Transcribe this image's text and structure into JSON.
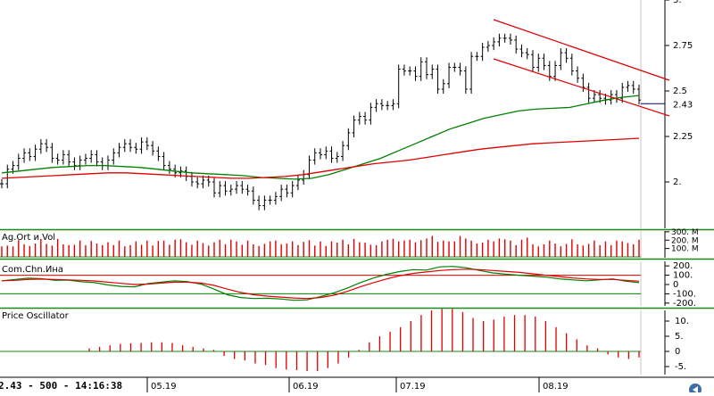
{
  "status_bar": {
    "text": "2.43 - 500 - 14:16:38"
  },
  "colors": {
    "bar": "#000000",
    "ma_short": "#008000",
    "ma_long": "#e00000",
    "channel": "#e00000",
    "histogram": "#e00000",
    "panel_border": "#1a8a1a",
    "grid": "#c8c8c8"
  },
  "chart_data": [
    {
      "type": "line",
      "panel": "price",
      "title": "",
      "x_tick_labels": [
        "05.19",
        "06.19",
        "07.19",
        "08.19"
      ],
      "y_tick_labels": [
        "3.",
        "2.75",
        "2.5",
        "2.25",
        "2."
      ],
      "ylim": [
        1.75,
        3.0
      ],
      "last_price_label": "2.43",
      "grid": true,
      "series": [
        {
          "style": "ohlc",
          "values": [
            1.99,
            2.07,
            2.09,
            2.13,
            2.16,
            2.14,
            2.18,
            2.21,
            2.19,
            2.13,
            2.12,
            2.15,
            2.11,
            2.09,
            2.12,
            2.13,
            2.15,
            2.11,
            2.09,
            2.12,
            2.16,
            2.19,
            2.21,
            2.19,
            2.18,
            2.22,
            2.2,
            2.17,
            2.14,
            2.09,
            2.07,
            2.05,
            2.06,
            2.03,
            2.0,
            1.99,
            2.01,
            2.0,
            1.94,
            1.98,
            1.95,
            1.96,
            1.98,
            1.96,
            1.95,
            1.9,
            1.87,
            1.9,
            1.9,
            1.92,
            1.96,
            1.94,
            1.98,
            2.01,
            2.04,
            2.12,
            2.16,
            2.15,
            2.17,
            2.13,
            2.14,
            2.2,
            2.27,
            2.34,
            2.36,
            2.34,
            2.41,
            2.43,
            2.42,
            2.42,
            2.43,
            2.62,
            2.61,
            2.61,
            2.58,
            2.66,
            2.59,
            2.62,
            2.51,
            2.54,
            2.63,
            2.63,
            2.61,
            2.51,
            2.69,
            2.69,
            2.74,
            2.75,
            2.77,
            2.79,
            2.79,
            2.78,
            2.73,
            2.71,
            2.7,
            2.63,
            2.68,
            2.64,
            2.58,
            2.64,
            2.71,
            2.68,
            2.61,
            2.57,
            2.52,
            2.46,
            2.48,
            2.46,
            2.45,
            2.48,
            2.46,
            2.52,
            2.53,
            2.51,
            2.45
          ]
        },
        {
          "style": "moving-average",
          "values": [
            2.05,
            2.06,
            2.07,
            2.08,
            2.085,
            2.09,
            2.09,
            2.085,
            2.08,
            2.07,
            2.06,
            2.05,
            2.045,
            2.04,
            2.035,
            2.025,
            2.02,
            2.015,
            2.02,
            2.04,
            2.07,
            2.1,
            2.13,
            2.17,
            2.21,
            2.25,
            2.29,
            2.32,
            2.35,
            2.37,
            2.39,
            2.4,
            2.405,
            2.41,
            2.43,
            2.45,
            2.465,
            2.475
          ]
        },
        {
          "style": "moving-average",
          "values": [
            2.02,
            2.025,
            2.03,
            2.035,
            2.04,
            2.045,
            2.05,
            2.05,
            2.045,
            2.04,
            2.035,
            2.03,
            2.025,
            2.02,
            2.02,
            2.025,
            2.03,
            2.04,
            2.055,
            2.07,
            2.085,
            2.1,
            2.11,
            2.12,
            2.135,
            2.15,
            2.165,
            2.18,
            2.19,
            2.2,
            2.21,
            2.215,
            2.22,
            2.225,
            2.23,
            2.235,
            2.24
          ]
        }
      ]
    },
    {
      "type": "bar",
      "panel": "volume",
      "title": "Ag.Ort и Vol",
      "y_tick_labels": [
        "300. M",
        "200. M",
        "100. M"
      ],
      "ylim": [
        0,
        320
      ],
      "values": [
        125,
        135,
        125,
        200,
        150,
        130,
        160,
        215,
        155,
        135,
        215,
        150,
        140,
        145,
        195,
        140,
        190,
        160,
        140,
        175,
        140,
        195,
        125,
        140,
        185,
        145,
        195,
        135,
        190,
        195,
        145,
        205,
        210,
        175,
        145,
        195,
        165,
        135,
        175,
        205,
        150,
        205,
        185,
        145,
        195,
        150,
        130,
        155,
        185,
        195,
        150,
        160,
        185,
        140,
        180,
        200,
        135,
        185,
        130,
        185,
        170,
        205,
        150,
        215,
        175,
        170,
        145,
        140,
        185,
        205,
        215,
        185,
        195,
        205,
        175,
        200,
        220,
        250,
        180,
        195,
        185,
        185,
        250,
        220,
        195,
        160,
        170,
        205,
        185,
        220,
        210,
        195,
        140,
        205,
        230,
        150,
        125,
        150,
        195,
        160,
        125,
        155,
        210,
        150,
        135,
        155,
        195,
        140,
        185,
        140,
        195,
        185,
        165,
        150,
        205
      ]
    },
    {
      "type": "line",
      "panel": "cci",
      "title": "Com.Chn.Ина",
      "y_tick_labels": [
        "200.",
        "100.",
        "0",
        "-100.",
        "-200."
      ],
      "ylim": [
        -230,
        230
      ],
      "reference_lines": [
        100,
        -100
      ],
      "series": [
        {
          "style": "indicator",
          "values": [
            40,
            55,
            68,
            62,
            45,
            48,
            30,
            20,
            -5,
            -20,
            -25,
            10,
            25,
            40,
            30,
            5,
            -50,
            -110,
            -140,
            -150,
            -148,
            -155,
            -170,
            -165,
            -130,
            -90,
            -40,
            20,
            70,
            110,
            140,
            160,
            155,
            190,
            195,
            180,
            150,
            125,
            110,
            100,
            90,
            80,
            60,
            50,
            40,
            50,
            60,
            35,
            20
          ]
        },
        {
          "style": "indicator-signal",
          "values": [
            40,
            45,
            55,
            58,
            55,
            50,
            45,
            38,
            25,
            12,
            0,
            5,
            15,
            25,
            25,
            15,
            -10,
            -50,
            -85,
            -110,
            -125,
            -135,
            -145,
            -150,
            -140,
            -115,
            -75,
            -25,
            20,
            60,
            95,
            120,
            135,
            150,
            160,
            165,
            160,
            150,
            140,
            130,
            115,
            100,
            85,
            70,
            60,
            55,
            55,
            45,
            35
          ]
        }
      ]
    },
    {
      "type": "bar",
      "panel": "price-oscillator",
      "title": "Price Oscillator",
      "y_tick_labels": [
        "10.",
        "5.",
        "0",
        "-5."
      ],
      "ylim": [
        -7.5,
        14
      ],
      "values": [
        1.0,
        1.5,
        2.0,
        2.5,
        2.7,
        2.8,
        3.0,
        3.0,
        2.8,
        2.0,
        1.5,
        1.0,
        0.5,
        -1.5,
        -2.5,
        -3.0,
        -4.0,
        -4.5,
        -5.5,
        -6.0,
        -6.2,
        -6.5,
        -6.5,
        -5.5,
        -4.0,
        -2.0,
        0.5,
        3.0,
        5.0,
        6.5,
        8.0,
        10.0,
        12.0,
        13.5,
        14.0,
        14.0,
        13.0,
        11.0,
        10.0,
        10.5,
        11.5,
        12.0,
        12.0,
        11.5,
        10.0,
        8.0,
        6.0,
        4.0,
        2.0,
        1.0,
        -1.0,
        -2.0,
        -2.5,
        -2.0
      ]
    }
  ]
}
